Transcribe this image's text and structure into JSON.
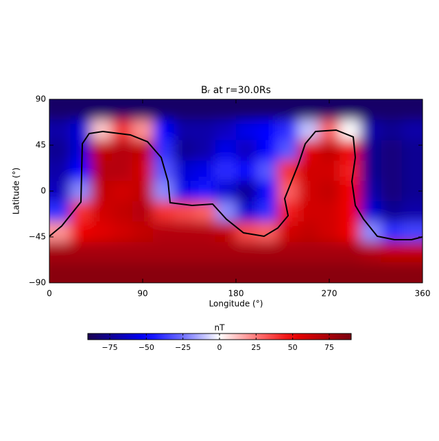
{
  "chart_data": {
    "type": "heatmap",
    "title": "Bᵣ at r=30.0Rs",
    "x_label": "Longitude (°)",
    "y_label": "Latitude (°)",
    "colorbar_label": "nT",
    "xlim": [
      0,
      360
    ],
    "ylim": [
      -90,
      90
    ],
    "xticks": [
      0,
      90,
      180,
      270,
      360
    ],
    "yticks": [
      90,
      45,
      0,
      {
        "value": -45,
        "label": "−45"
      },
      {
        "value": -90,
        "label": "−90"
      }
    ],
    "zlim": [
      -90,
      90
    ],
    "zticks": [
      {
        "value": -75,
        "label": "−75"
      },
      {
        "value": -50,
        "label": "−50"
      },
      {
        "value": -25,
        "label": "−25"
      },
      0,
      25,
      50,
      75
    ],
    "x": [
      10,
      30,
      50,
      70,
      90,
      110,
      130,
      150,
      170,
      190,
      210,
      230,
      250,
      270,
      290,
      310,
      330,
      350
    ],
    "y": [
      80,
      60,
      40,
      20,
      0,
      -20,
      -40,
      -60,
      -80
    ],
    "z": [
      [
        -85,
        -85,
        -85,
        -85,
        -85,
        -85,
        -85,
        -85,
        -85,
        -85,
        -85,
        -85,
        -85,
        -85,
        -85,
        -85,
        -85,
        -85
      ],
      [
        -70,
        -60,
        10,
        40,
        20,
        -50,
        -70,
        -70,
        -65,
        -55,
        -50,
        -40,
        -10,
        30,
        0,
        -70,
        -75,
        -70
      ],
      [
        -75,
        -60,
        65,
        70,
        65,
        -40,
        -75,
        -70,
        -55,
        -65,
        -50,
        -30,
        55,
        65,
        50,
        -75,
        -80,
        -75
      ],
      [
        -70,
        -50,
        70,
        70,
        60,
        -30,
        -60,
        -55,
        -40,
        -50,
        -30,
        40,
        60,
        60,
        45,
        -75,
        -80,
        -75
      ],
      [
        -65,
        -20,
        65,
        60,
        65,
        -20,
        -55,
        -45,
        -60,
        -75,
        -50,
        30,
        60,
        65,
        50,
        -70,
        -80,
        -75
      ],
      [
        -40,
        40,
        60,
        65,
        70,
        40,
        35,
        30,
        -20,
        -60,
        -40,
        45,
        60,
        60,
        50,
        -60,
        -75,
        -70
      ],
      [
        20,
        50,
        55,
        60,
        65,
        70,
        70,
        70,
        65,
        35,
        30,
        60,
        65,
        60,
        50,
        -20,
        -40,
        -35
      ],
      [
        75,
        75,
        75,
        75,
        75,
        75,
        75,
        75,
        75,
        75,
        75,
        75,
        75,
        75,
        75,
        70,
        65,
        65
      ],
      [
        85,
        85,
        85,
        85,
        85,
        85,
        85,
        85,
        85,
        85,
        85,
        85,
        85,
        85,
        85,
        85,
        85,
        85
      ]
    ]
  }
}
